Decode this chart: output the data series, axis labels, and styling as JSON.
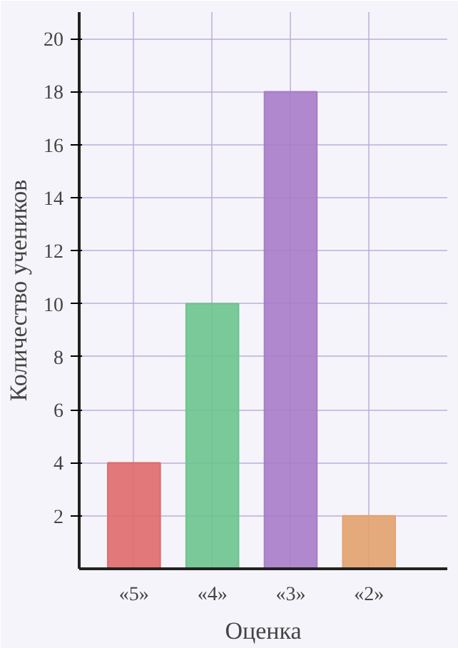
{
  "chart_data": {
    "type": "bar",
    "xlabel": "Оценка",
    "ylabel": "Количество учеников",
    "categories": [
      "«5»",
      "«4»",
      "«3»",
      "«2»"
    ],
    "values": [
      4,
      10,
      18,
      2
    ],
    "colors": [
      "#e06a6a",
      "#6cc48e",
      "#a77cc9",
      "#e3a26e"
    ],
    "ylim": [
      0,
      21
    ],
    "yticks": [
      2,
      4,
      6,
      8,
      10,
      12,
      14,
      16,
      18,
      20
    ],
    "grid": true
  }
}
